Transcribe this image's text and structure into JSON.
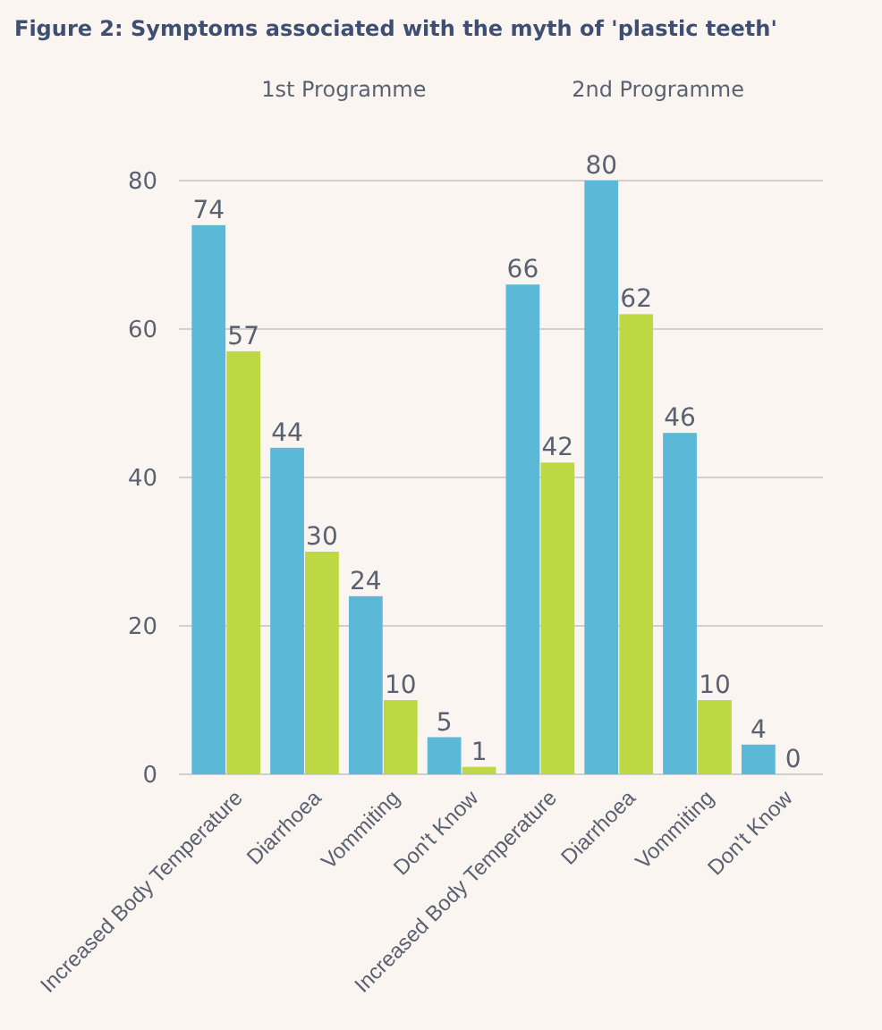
{
  "chart_data": {
    "type": "bar",
    "title": "Figure 2: Symptoms associated with the myth of 'plastic teeth'",
    "categories": [
      "Increased Body Temperature",
      "Diarrhoea",
      "Vommiting",
      "Don't Know",
      "Increased Body Temperature",
      "Diarrhoea",
      "Vommiting",
      "Don't Know"
    ],
    "series": [
      {
        "color": "#5bb8d6",
        "values": [
          74,
          44,
          24,
          5,
          66,
          80,
          46,
          4
        ]
      },
      {
        "color": "#bed843",
        "values": [
          57,
          30,
          10,
          1,
          42,
          62,
          10,
          0
        ]
      }
    ],
    "annotations": [
      "1st Programme",
      "2nd Programme"
    ],
    "ylim": [
      0,
      80
    ],
    "yticks": [
      0,
      20,
      40,
      60,
      80
    ],
    "grid": "y",
    "data_labels": true
  }
}
